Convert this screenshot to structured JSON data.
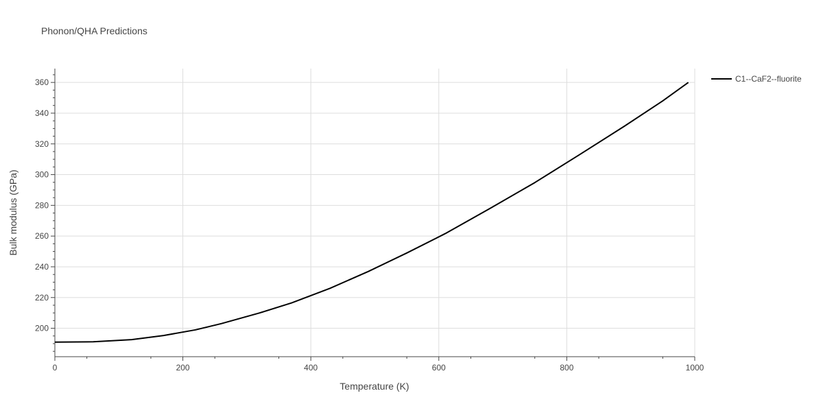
{
  "chart_data": {
    "type": "line",
    "title": "Phonon/QHA Predictions",
    "xlabel": "Temperature (K)",
    "ylabel": "Bulk modulus (GPa)",
    "xlim": [
      0,
      1000
    ],
    "ylim": [
      181.5,
      369
    ],
    "x_ticks": [
      0,
      200,
      400,
      600,
      800,
      1000
    ],
    "x_tick_labels": [
      "0",
      "200",
      "400",
      "600",
      "800",
      "1000"
    ],
    "y_ticks": [
      200,
      220,
      240,
      260,
      280,
      300,
      320,
      340,
      360
    ],
    "y_tick_labels": [
      "200",
      "220",
      "240",
      "260",
      "280",
      "300",
      "320",
      "340",
      "360"
    ],
    "grid": true,
    "legend_position": "top-right",
    "series": [
      {
        "name": "C1--CaF2--fluorite",
        "color": "#000000",
        "x": [
          0,
          60,
          120,
          170,
          220,
          260,
          320,
          370,
          430,
          490,
          550,
          610,
          680,
          750,
          820,
          890,
          950,
          990
        ],
        "y": [
          191,
          191.2,
          192.6,
          195.3,
          199,
          203,
          210,
          216.5,
          226,
          237,
          249,
          261.6,
          278,
          294.8,
          313,
          331.5,
          348,
          360
        ]
      }
    ]
  }
}
